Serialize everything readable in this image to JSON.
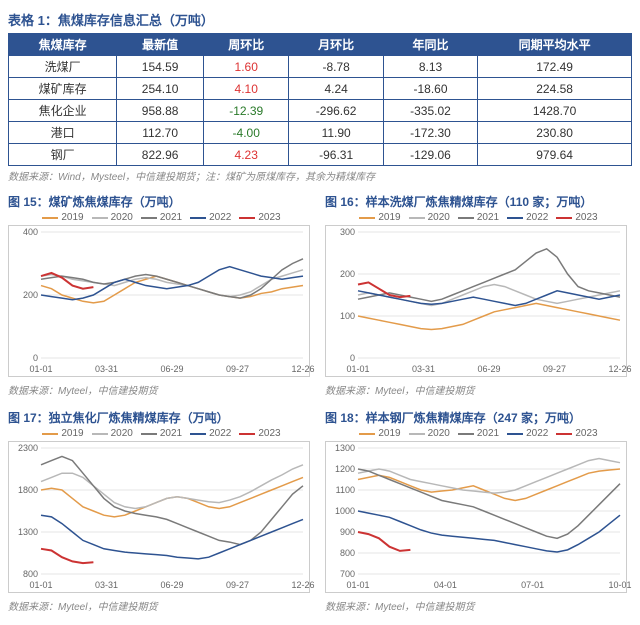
{
  "table": {
    "title": "表格 1：焦煤库存信息汇总（万吨）",
    "columns": [
      "焦煤库存",
      "最新值",
      "周环比",
      "月环比",
      "年同比",
      "同期平均水平"
    ],
    "rows": [
      {
        "label": "洗煤厂",
        "latest": "154.59",
        "wow": "1.60",
        "wow_sign": "pos",
        "mom": "-8.78",
        "yoy": "8.13",
        "avg": "172.49"
      },
      {
        "label": "煤矿库存",
        "latest": "254.10",
        "wow": "4.10",
        "wow_sign": "pos",
        "mom": "4.24",
        "yoy": "-18.60",
        "avg": "224.58"
      },
      {
        "label": "焦化企业",
        "latest": "958.88",
        "wow": "-12.39",
        "wow_sign": "neg",
        "mom": "-296.62",
        "yoy": "-335.02",
        "avg": "1428.70"
      },
      {
        "label": "港口",
        "latest": "112.70",
        "wow": "-4.00",
        "wow_sign": "neg",
        "mom": "11.90",
        "yoy": "-172.30",
        "avg": "230.80"
      },
      {
        "label": "钢厂",
        "latest": "822.96",
        "wow": "4.23",
        "wow_sign": "pos",
        "mom": "-96.31",
        "yoy": "-129.06",
        "avg": "979.64"
      }
    ],
    "note": "数据来源：Wind，Mysteel，中信建投期货；注：煤矿为原煤库存，其余为精煤库存"
  },
  "legend_years": [
    "2019",
    "2020",
    "2021",
    "2022",
    "2023"
  ],
  "series_colors": {
    "2019": "#e39b4a",
    "2020": "#b8b8b8",
    "2021": "#7a7a7a",
    "2022": "#2e5391",
    "2023": "#c33"
  },
  "chart_note": "数据来源：Myteel，中信建投期货",
  "charts": [
    {
      "title": "图 15：煤矿炼焦煤库存（万吨）",
      "ylim": [
        0,
        400
      ],
      "yticks": [
        0,
        200,
        400
      ],
      "xticks": [
        "01-01",
        "03-31",
        "06-29",
        "09-27",
        "12-26"
      ],
      "series": {
        "2019": [
          230,
          220,
          200,
          190,
          180,
          175,
          180,
          200,
          220,
          240,
          250,
          260,
          250,
          240,
          230,
          220,
          210,
          200,
          195,
          190,
          195,
          205,
          210,
          220,
          225,
          230
        ],
        "2020": [
          260,
          265,
          260,
          250,
          245,
          240,
          235,
          230,
          240,
          250,
          255,
          250,
          240,
          235,
          230,
          220,
          210,
          200,
          195,
          200,
          210,
          230,
          250,
          260,
          270,
          280
        ],
        "2021": [
          250,
          255,
          260,
          255,
          250,
          240,
          235,
          240,
          250,
          260,
          265,
          260,
          250,
          240,
          230,
          220,
          210,
          200,
          195,
          190,
          200,
          220,
          250,
          280,
          300,
          315
        ],
        "2022": [
          200,
          195,
          190,
          185,
          190,
          200,
          220,
          240,
          250,
          240,
          230,
          225,
          220,
          225,
          230,
          240,
          260,
          280,
          290,
          280,
          270,
          260,
          255,
          250,
          255,
          260
        ],
        "2023": [
          260,
          270,
          255,
          230,
          220,
          225
        ]
      }
    },
    {
      "title": "图 16：样本洗煤厂炼焦精煤库存（110 家；万吨）",
      "ylim": [
        0,
        300
      ],
      "yticks": [
        0,
        100,
        200,
        300
      ],
      "xticks": [
        "01-01",
        "03-31",
        "06-29",
        "09-27",
        "12-26"
      ],
      "series": {
        "2019": [
          100,
          95,
          90,
          85,
          80,
          75,
          70,
          68,
          70,
          75,
          80,
          90,
          100,
          110,
          115,
          120,
          125,
          130,
          125,
          120,
          115,
          110,
          105,
          100,
          95,
          90
        ],
        "2020": [
          150,
          155,
          150,
          145,
          140,
          135,
          130,
          125,
          130,
          140,
          150,
          160,
          170,
          175,
          170,
          160,
          150,
          140,
          135,
          130,
          135,
          140,
          145,
          150,
          155,
          160
        ],
        "2021": [
          140,
          145,
          150,
          155,
          150,
          145,
          140,
          135,
          140,
          150,
          160,
          170,
          180,
          190,
          200,
          210,
          230,
          250,
          260,
          240,
          200,
          170,
          160,
          155,
          150,
          145
        ],
        "2022": [
          160,
          155,
          150,
          145,
          140,
          135,
          130,
          128,
          130,
          135,
          140,
          145,
          140,
          135,
          130,
          125,
          130,
          140,
          150,
          160,
          155,
          150,
          145,
          140,
          145,
          150
        ],
        "2023": [
          175,
          180,
          165,
          150,
          145,
          148
        ]
      }
    },
    {
      "title": "图 17：独立焦化厂炼焦精煤库存（万吨）",
      "ylim": [
        800,
        2300
      ],
      "yticks": [
        800,
        1300,
        1800,
        2300
      ],
      "xticks": [
        "01-01",
        "03-31",
        "06-29",
        "09-27",
        "12-26"
      ],
      "series": {
        "2019": [
          1800,
          1820,
          1800,
          1700,
          1600,
          1550,
          1500,
          1480,
          1500,
          1550,
          1600,
          1650,
          1700,
          1720,
          1700,
          1650,
          1600,
          1580,
          1600,
          1650,
          1700,
          1750,
          1800,
          1850,
          1900,
          1950
        ],
        "2020": [
          1900,
          1950,
          2000,
          2000,
          1950,
          1850,
          1750,
          1650,
          1600,
          1580,
          1600,
          1650,
          1700,
          1720,
          1700,
          1680,
          1660,
          1650,
          1680,
          1720,
          1780,
          1850,
          1920,
          1980,
          2050,
          2100
        ],
        "2021": [
          2100,
          2150,
          2200,
          2150,
          2000,
          1850,
          1700,
          1600,
          1550,
          1520,
          1500,
          1480,
          1450,
          1400,
          1350,
          1300,
          1250,
          1200,
          1180,
          1150,
          1200,
          1300,
          1450,
          1600,
          1750,
          1850
        ],
        "2022": [
          1500,
          1480,
          1400,
          1300,
          1200,
          1150,
          1100,
          1080,
          1060,
          1050,
          1040,
          1030,
          1020,
          1000,
          990,
          980,
          1000,
          1050,
          1100,
          1150,
          1200,
          1250,
          1300,
          1350,
          1400,
          1450
        ],
        "2023": [
          1100,
          1080,
          1000,
          950,
          930,
          940
        ]
      }
    },
    {
      "title": "图 18：样本钢厂炼焦精煤库存（247 家；万吨）",
      "ylim": [
        700,
        1300
      ],
      "yticks": [
        700,
        800,
        900,
        1000,
        1100,
        1200,
        1300
      ],
      "xticks": [
        "01-01",
        "04-01",
        "07-01",
        "10-01"
      ],
      "series": {
        "2019": [
          1150,
          1160,
          1170,
          1160,
          1140,
          1120,
          1100,
          1090,
          1095,
          1100,
          1110,
          1120,
          1100,
          1080,
          1060,
          1050,
          1060,
          1080,
          1100,
          1120,
          1140,
          1160,
          1180,
          1190,
          1195,
          1200
        ],
        "2020": [
          1180,
          1190,
          1200,
          1190,
          1170,
          1150,
          1140,
          1130,
          1120,
          1110,
          1100,
          1095,
          1090,
          1085,
          1090,
          1100,
          1120,
          1140,
          1160,
          1180,
          1200,
          1220,
          1240,
          1250,
          1240,
          1230
        ],
        "2021": [
          1200,
          1190,
          1170,
          1150,
          1130,
          1110,
          1090,
          1070,
          1050,
          1040,
          1030,
          1020,
          1000,
          980,
          960,
          940,
          920,
          900,
          880,
          870,
          890,
          930,
          980,
          1030,
          1080,
          1130
        ],
        "2022": [
          1000,
          990,
          980,
          970,
          950,
          930,
          910,
          895,
          885,
          880,
          875,
          870,
          865,
          860,
          850,
          840,
          830,
          820,
          810,
          805,
          815,
          840,
          870,
          900,
          940,
          980
        ],
        "2023": [
          900,
          890,
          870,
          830,
          810,
          815
        ]
      }
    }
  ]
}
